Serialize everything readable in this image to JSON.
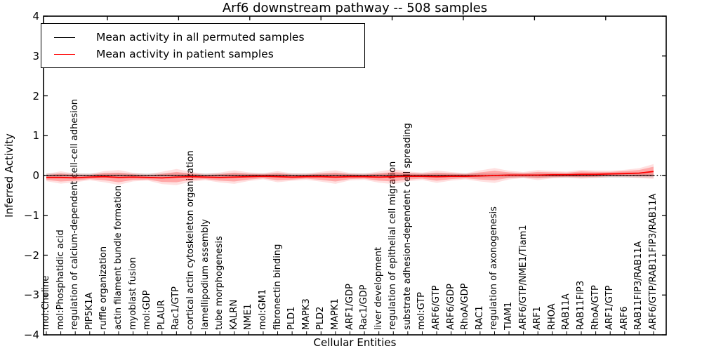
{
  "chart_data": {
    "type": "line",
    "title": "Arf6 downstream pathway -- 508 samples",
    "xlabel": "Cellular Entities",
    "ylabel": "Inferred Activity",
    "ylim": [
      -4,
      4
    ],
    "ytick_labels": [
      "4",
      "3",
      "2",
      "1",
      "0",
      "−1",
      "−2",
      "−3",
      "−4"
    ],
    "ytick_values": [
      4,
      3,
      2,
      1,
      0,
      -1,
      -2,
      -3,
      -4
    ],
    "grid": false,
    "legend_position": "upper left",
    "zero_line": {
      "style": "dotted",
      "color": "#000000",
      "y": 0
    },
    "categories": [
      "mol:Choline",
      "mol:Phosphatidic acid",
      "regulation of calcium-dependent cell-cell adhesion",
      "PIP5K1A",
      "ruffle organization",
      "actin filament bundle formation",
      "myoblast fusion",
      "mol:GDP",
      "PLAUR",
      "Rac1/GTP",
      "cortical actin cytoskeleton organization",
      "lamellipodium assembly",
      "tube morphogenesis",
      "KALRN",
      "NME1",
      "mol:GM1",
      "fibronectin binding",
      "PLD1",
      "MAPK3",
      "PLD2",
      "MAPK1",
      "ARF1/GDP",
      "Rac1/GDP",
      "liver development",
      "regulation of epithelial cell migration",
      "substrate adhesion-dependent cell spreading",
      "mol:GTP",
      "ARF6/GTP",
      "ARF6/GDP",
      "RhoA/GDP",
      "RAC1",
      "regulation of axonogenesis",
      "TIAM1",
      "ARF6/GTP/NME1/Tiam1",
      "ARF1",
      "RHOA",
      "RAB11A",
      "RAB11FIP3",
      "RhoA/GTP",
      "ARF1/GTP",
      "ARF6",
      "RAB11FIP3/RAB11A",
      "ARF6/GTP/RAB11FIP3/RAB11A"
    ],
    "series": [
      {
        "name": "Mean activity in all permuted samples",
        "color": "#000000",
        "style": "solid",
        "values": [
          0,
          0,
          0,
          0,
          0,
          0,
          0,
          0,
          0,
          0,
          0,
          0,
          0,
          0,
          0,
          0,
          0,
          0,
          0,
          0,
          0,
          0,
          0,
          0,
          0,
          0,
          0,
          0,
          0,
          0,
          0,
          0,
          0,
          0,
          0,
          0,
          0,
          0,
          0,
          0,
          0,
          0,
          0
        ]
      },
      {
        "name": "Mean activity in patient samples",
        "color": "#ff0000",
        "style": "solid",
        "values": [
          -0.05,
          -0.05,
          -0.06,
          -0.04,
          -0.03,
          -0.05,
          -0.04,
          -0.05,
          -0.06,
          -0.04,
          -0.03,
          -0.04,
          -0.05,
          -0.04,
          -0.03,
          -0.02,
          -0.03,
          -0.04,
          -0.03,
          -0.03,
          -0.04,
          -0.03,
          -0.03,
          -0.04,
          -0.03,
          -0.02,
          -0.02,
          -0.03,
          -0.02,
          -0.02,
          -0.01,
          0,
          0.01,
          0.01,
          0.01,
          0.02,
          0.02,
          0.03,
          0.03,
          0.04,
          0.05,
          0.06,
          0.1
        ],
        "band_upper": [
          0.01,
          0.05,
          0.01,
          0.01,
          0.06,
          0.07,
          0.03,
          0,
          0.04,
          0.09,
          0.05,
          0.01,
          0.03,
          0.07,
          0.04,
          0.03,
          0.06,
          0.02,
          0.02,
          0.05,
          0.07,
          0.03,
          0.02,
          0.05,
          0.09,
          0.06,
          0.04,
          0.07,
          0.05,
          0.03,
          0.08,
          0.12,
          0.08,
          0.06,
          0.09,
          0.08,
          0.07,
          0.1,
          0.09,
          0.09,
          0.11,
          0.14,
          0.22
        ],
        "band_lower": [
          -0.11,
          -0.15,
          -0.13,
          -0.09,
          -0.12,
          -0.17,
          -0.11,
          -0.1,
          -0.16,
          -0.17,
          -0.11,
          -0.09,
          -0.13,
          -0.15,
          -0.1,
          -0.07,
          -0.12,
          -0.1,
          -0.08,
          -0.11,
          -0.15,
          -0.09,
          -0.08,
          -0.13,
          -0.15,
          -0.1,
          -0.08,
          -0.13,
          -0.09,
          -0.07,
          -0.1,
          -0.12,
          -0.06,
          -0.04,
          -0.07,
          -0.04,
          -0.03,
          -0.04,
          -0.03,
          -0.01,
          -0.01,
          -0.02,
          -0.02
        ],
        "band_color": "rgba(255,0,0,0.25)",
        "band_outer_color": "rgba(255,0,0,0.12)"
      }
    ],
    "permuted_band": {
      "halfwidth": 0.05,
      "color": "rgba(130,130,130,0.25)"
    }
  }
}
